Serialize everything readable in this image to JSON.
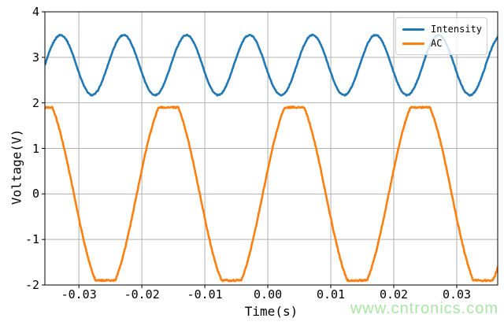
{
  "figure": {
    "watermark": "www.cntronics.com",
    "watermark_color": "#aae5a5",
    "background": "#ffffff"
  },
  "axes": {
    "xtick_labels": [
      "-0.03",
      "-0.02",
      "-0.01",
      "0.00",
      "0.01",
      "0.02",
      "0.03"
    ],
    "ytick_labels": [
      "-2",
      "-1",
      "0",
      "1",
      "2",
      "3",
      "4"
    ],
    "grid_color": "#b0b0b0",
    "spine_color": "#000000",
    "tick_color": "#000000"
  },
  "legend": {
    "border_color": "#cccccc",
    "background": "rgba(255,255,255,0.8)",
    "position": "upper right"
  },
  "chart_data": {
    "type": "line",
    "title": "",
    "xlabel": "Time(s)",
    "ylabel": "Voltage(V)",
    "xlim": [
      -0.0354,
      0.0365
    ],
    "ylim": [
      -2,
      4
    ],
    "xticks": [
      -0.03,
      -0.02,
      -0.01,
      0,
      0.01,
      0.02,
      0.03
    ],
    "yticks": [
      -2,
      -1,
      0,
      1,
      2,
      3,
      4
    ],
    "grid": true,
    "legend_position": "upper right",
    "series": [
      {
        "name": "Intensity",
        "color": "#1f77b4",
        "waveform": "sine",
        "frequency_hz": 100,
        "offset_v": 2.83,
        "amplitude_v": 0.66,
        "peak_time_s": 0.0071,
        "noise_v": 0.012
      },
      {
        "name": "AC",
        "color": "#ff7f0e",
        "waveform": "clipped_sine",
        "frequency_hz": 50,
        "offset_v": 0,
        "amplitude_v": 2.15,
        "clip_v": 1.9,
        "rising_zero_time_s": -0.0008,
        "noise_v": 0.018
      }
    ]
  }
}
